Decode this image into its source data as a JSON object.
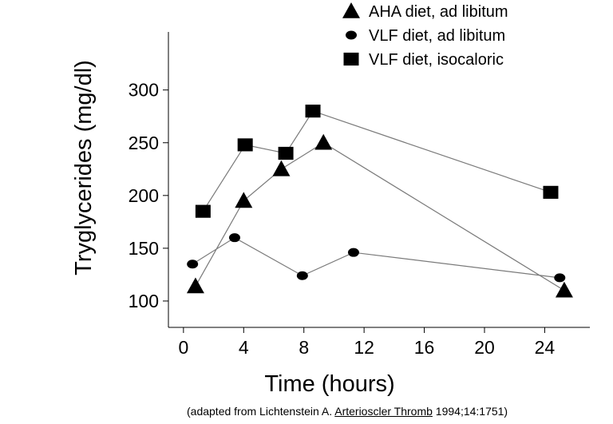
{
  "chart_data": {
    "type": "line",
    "title": "",
    "xlabel": "Time (hours)",
    "ylabel": "Tryglycerides (mg/dl)",
    "xlim": [
      -1,
      27
    ],
    "ylim": [
      75,
      355
    ],
    "xticks": [
      0,
      4,
      8,
      12,
      16,
      20,
      24
    ],
    "yticks": [
      100,
      150,
      200,
      250,
      300
    ],
    "grid": false,
    "legend_position": "top-right",
    "series": [
      {
        "name": "AHA diet, ad libitum",
        "marker": "triangle",
        "x": [
          0.8,
          4.0,
          6.5,
          9.3,
          25.3
        ],
        "y": [
          114,
          195,
          225,
          250,
          110
        ]
      },
      {
        "name": "VLF diet, ad libitum",
        "marker": "circle",
        "x": [
          0.6,
          3.4,
          7.9,
          11.3,
          25.0
        ],
        "y": [
          135,
          160,
          124,
          146,
          122
        ]
      },
      {
        "name": "VLF diet, isocaloric",
        "marker": "square",
        "x": [
          1.3,
          4.1,
          6.8,
          8.6,
          24.4
        ],
        "y": [
          185,
          248,
          240,
          280,
          203
        ]
      }
    ]
  },
  "citation": {
    "prefix": "(adapted from Lichtenstein A. ",
    "journal": "Arterioscler Thromb",
    "suffix": " 1994;14:1751)"
  }
}
